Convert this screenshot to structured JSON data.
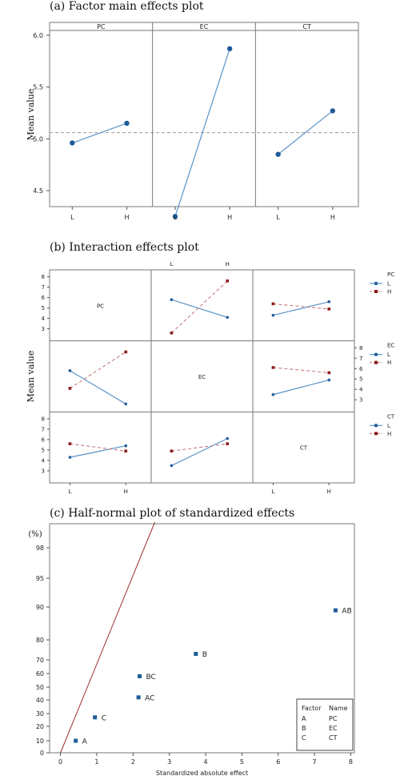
{
  "chart_data": [
    {
      "type": "line",
      "title": "(a) Factor main effects plot",
      "ylabel": "Mean value",
      "panels": [
        "PC",
        "EC",
        "CT"
      ],
      "categories": [
        "L",
        "H"
      ],
      "series": [
        {
          "panel": "PC",
          "values": [
            4.96,
            5.15
          ]
        },
        {
          "panel": "EC",
          "values": [
            4.25,
            5.87
          ]
        },
        {
          "panel": "CT",
          "values": [
            4.85,
            5.27
          ]
        }
      ],
      "yticks": [
        "6.0",
        "5.5",
        "5.0",
        "4.5"
      ],
      "ylim": [
        4.2,
        6.0
      ],
      "reference_line": 5.06
    },
    {
      "type": "line",
      "title": "(b) Interaction effects plot",
      "ylabel": "Mean value",
      "factors": [
        "PC",
        "EC",
        "CT"
      ],
      "categories": [
        "L",
        "H"
      ],
      "level_names": [
        "L",
        "H"
      ],
      "yticks": [
        "8",
        "7",
        "6",
        "5",
        "4",
        "3"
      ],
      "ylim": [
        2.3,
        8.2
      ],
      "cells": [
        {
          "row": 0,
          "col": 1,
          "L": [
            5.8,
            4.1
          ],
          "H": [
            2.6,
            7.6
          ]
        },
        {
          "row": 0,
          "col": 2,
          "L": [
            4.3,
            5.6
          ],
          "H": [
            5.4,
            4.9
          ]
        },
        {
          "row": 1,
          "col": 0,
          "L": [
            5.8,
            2.6
          ],
          "H": [
            4.1,
            7.6
          ]
        },
        {
          "row": 1,
          "col": 2,
          "L": [
            3.5,
            4.9
          ],
          "H": [
            6.1,
            5.6
          ]
        },
        {
          "row": 2,
          "col": 0,
          "L": [
            4.3,
            5.4
          ],
          "H": [
            5.6,
            4.9
          ]
        },
        {
          "row": 2,
          "col": 1,
          "L": [
            3.5,
            6.1
          ],
          "H": [
            4.9,
            5.6
          ]
        }
      ]
    },
    {
      "type": "scatter",
      "title": "(c) Half-normal plot of standardized effects",
      "xlabel": "Standardized absolute effect",
      "ylabel": "(%)",
      "xticks": [
        "0",
        "1",
        "2",
        "3",
        "4",
        "5",
        "6",
        "7",
        "8"
      ],
      "yticks": [
        "0",
        "10",
        "20",
        "30",
        "40",
        "50",
        "60",
        "70",
        "80",
        "90",
        "95",
        "98"
      ],
      "xlim": [
        -0.3,
        8.1
      ],
      "points": [
        {
          "label": "A",
          "x": 0.42,
          "y": 10
        },
        {
          "label": "C",
          "x": 0.95,
          "y": 27
        },
        {
          "label": "AC",
          "x": 2.15,
          "y": 42
        },
        {
          "label": "BC",
          "x": 2.18,
          "y": 58
        },
        {
          "label": "B",
          "x": 3.73,
          "y": 73
        },
        {
          "label": "AB",
          "x": 7.58,
          "y": 89
        }
      ],
      "fit_line": {
        "x": [
          0,
          2.6
        ],
        "y": [
          0,
          99
        ]
      },
      "legend": {
        "headers": [
          "Factor",
          "Name"
        ],
        "rows": [
          [
            "A",
            "PC"
          ],
          [
            "B",
            "EC"
          ],
          [
            "C",
            "CT"
          ]
        ]
      }
    }
  ]
}
